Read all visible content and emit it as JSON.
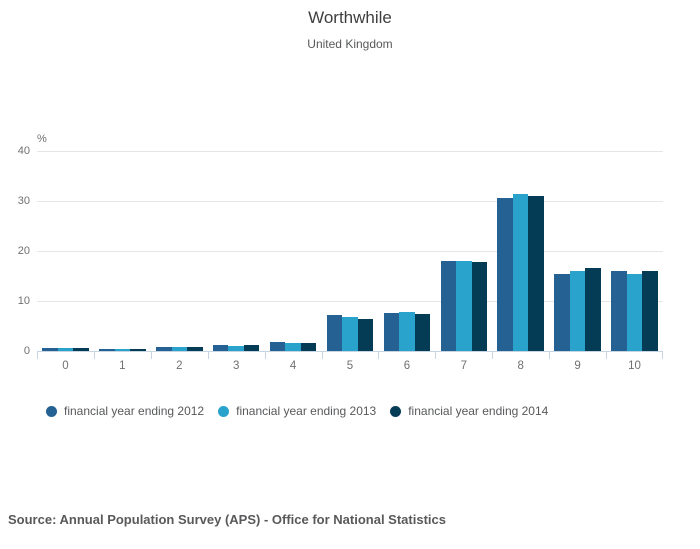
{
  "header": {
    "title": "Worthwhile",
    "subtitle": "United Kingdom"
  },
  "chart_data": {
    "type": "bar",
    "title": "Worthwhile",
    "subtitle": "United Kingdom",
    "categories": [
      "0",
      "1",
      "2",
      "3",
      "4",
      "5",
      "6",
      "7",
      "8",
      "9",
      "10"
    ],
    "series": [
      {
        "name": "financial year ending 2012",
        "color": "#256192",
        "values": [
          0.6,
          0.4,
          0.8,
          1.2,
          1.8,
          7.2,
          7.6,
          18.0,
          30.7,
          15.4,
          16.0
        ]
      },
      {
        "name": "financial year ending 2013",
        "color": "#29A2CC",
        "values": [
          0.6,
          0.4,
          0.8,
          1.1,
          1.7,
          6.8,
          7.9,
          18.0,
          31.4,
          16.0,
          15.4
        ]
      },
      {
        "name": "financial year ending 2014",
        "color": "#053C55",
        "values": [
          0.6,
          0.4,
          0.8,
          1.2,
          1.6,
          6.4,
          7.4,
          17.9,
          31.1,
          16.6,
          16.0
        ]
      }
    ],
    "xlabel": "",
    "ylabel": "%",
    "yticks": [
      0,
      10,
      20,
      30,
      40
    ],
    "ylim": [
      0,
      40
    ],
    "grid": "horizontal",
    "legend_position": "bottom",
    "gridline_color": "#e6e6e6",
    "axis_line_color": "#c7d4e2",
    "tick_label_color": "#707070"
  },
  "source": {
    "text": "Source: Annual Population Survey (APS) - Office for National Statistics"
  }
}
